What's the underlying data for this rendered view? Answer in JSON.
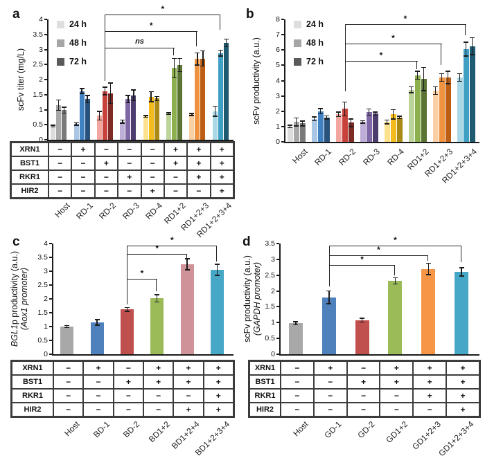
{
  "figure_background": "#ffffff",
  "chart_data": [
    {
      "id": "a",
      "panel_label": "a",
      "type": "bar",
      "grouped": true,
      "ylabel_lines": [
        [
          {
            "text": "scFv titer (mg/L)",
            "italic": false
          }
        ]
      ],
      "ylim": [
        0,
        4
      ],
      "ytick_values": [
        0,
        0.5,
        1,
        1.5,
        2,
        2.5,
        3,
        3.5,
        4
      ],
      "ytick_labels": [
        "0",
        "0.5",
        "1",
        "1.5",
        "2",
        "2.5",
        "3",
        "3.5",
        "4"
      ],
      "categories": [
        "Host",
        "RD-1",
        "RD-2",
        "RD-3",
        "RD-4",
        "RD1+2",
        "RD1+2+3",
        "RD1+2+3+4"
      ],
      "series": [
        {
          "name": "24 h",
          "values": [
            0.45,
            0.52,
            0.8,
            0.6,
            0.78,
            0.87,
            0.84,
            0.95
          ],
          "errors": [
            0.03,
            0.04,
            0.14,
            0.05,
            0.03,
            0.03,
            0.03,
            0.17
          ]
        },
        {
          "name": "48 h",
          "values": [
            1.15,
            1.62,
            1.62,
            1.35,
            1.43,
            2.38,
            2.68,
            2.88
          ],
          "errors": [
            0.17,
            0.08,
            0.13,
            0.12,
            0.17,
            0.32,
            0.2,
            0.1
          ]
        },
        {
          "name": "72 h",
          "values": [
            0.98,
            1.35,
            1.55,
            1.48,
            1.37,
            2.48,
            2.7,
            3.22
          ],
          "errors": [
            0.1,
            0.12,
            0.34,
            0.18,
            0.07,
            0.22,
            0.25,
            0.13
          ]
        }
      ],
      "group_colors": [
        [
          "#dcdcdc",
          "#a8a8a8",
          "#7a7a7a"
        ],
        [
          "#a9c7e4",
          "#4081c1",
          "#28517c"
        ],
        [
          "#f2a69f",
          "#c8423c",
          "#7d2a24"
        ],
        [
          "#bcaed6",
          "#8068a6",
          "#4c3d6e"
        ],
        [
          "#fce28e",
          "#f3bb1c",
          "#aa8a14"
        ],
        [
          "#bcd399",
          "#8cb04e",
          "#5c7433"
        ],
        [
          "#fbcfa4",
          "#ef9341",
          "#bc5f14"
        ],
        [
          "#a9d8e6",
          "#3fa0c4",
          "#1e5a70"
        ]
      ],
      "legend": {
        "entries": [
          "24 h",
          "48 h",
          "72 h"
        ],
        "colors": [
          "#dedede",
          "#a6a6a6",
          "#5a5a5a"
        ],
        "position": "top-left"
      },
      "significance": [
        {
          "from": 2,
          "to": 5,
          "label": "ns",
          "italic": true,
          "y": 3.05,
          "from_end": 1.95,
          "to_end": 2.8
        },
        {
          "from": 2,
          "to": 6,
          "label": "*",
          "italic": false,
          "y": 3.6,
          "from_end": 1.95,
          "to_end": 3.1
        },
        {
          "from": 2,
          "to": 7,
          "label": "*",
          "italic": false,
          "y": 4.15,
          "from_end": 1.95,
          "to_end": 3.65
        }
      ],
      "table": {
        "row_headers": [
          "XRN1",
          "BST1",
          "RKR1",
          "HIR2"
        ],
        "rows": [
          [
            "−",
            "+",
            "−",
            "−",
            "−",
            "+",
            "+",
            "+"
          ],
          [
            "−",
            "−",
            "+",
            "−",
            "−",
            "+",
            "+",
            "+"
          ],
          [
            "−",
            "−",
            "−",
            "+",
            "−",
            "−",
            "+",
            "+"
          ],
          [
            "−",
            "−",
            "−",
            "−",
            "+",
            "−",
            "−",
            "+"
          ]
        ]
      }
    },
    {
      "id": "b",
      "panel_label": "b",
      "type": "bar",
      "grouped": true,
      "ylabel_lines": [
        [
          {
            "text": "scFv productivity (a.u.)",
            "italic": false
          }
        ]
      ],
      "ylim": [
        0,
        8
      ],
      "ytick_values": [
        0,
        1,
        2,
        3,
        4,
        5,
        6,
        7,
        8
      ],
      "ytick_labels": [
        "0",
        "1",
        "2",
        "3",
        "4",
        "5",
        "6",
        "7",
        "8"
      ],
      "categories": [
        "Host",
        "RD-1",
        "RD-2",
        "RD-3",
        "RD-4",
        "RD1+2",
        "RD1+2+3",
        "RD1+2+3+4"
      ],
      "series": [
        {
          "name": "24 h",
          "values": [
            1.0,
            1.5,
            1.8,
            1.3,
            1.3,
            3.4,
            3.35,
            4.2
          ],
          "errors": [
            0.08,
            0.12,
            0.15,
            0.07,
            0.12,
            0.2,
            0.25,
            0.25
          ]
        },
        {
          "name": "48 h",
          "values": [
            1.3,
            2.0,
            2.15,
            1.95,
            1.8,
            4.35,
            4.2,
            6.05
          ],
          "errors": [
            0.25,
            0.18,
            0.45,
            0.2,
            0.3,
            0.25,
            0.25,
            0.45
          ]
        },
        {
          "name": "72 h",
          "values": [
            1.2,
            1.6,
            1.25,
            1.85,
            1.6,
            4.1,
            4.2,
            6.25
          ],
          "errors": [
            0.15,
            0.1,
            0.25,
            0.1,
            0.08,
            0.75,
            0.4,
            0.55
          ]
        }
      ],
      "group_colors": [
        [
          "#dcdcdc",
          "#a8a8a8",
          "#7a7a7a"
        ],
        [
          "#a9c7e4",
          "#4081c1",
          "#28517c"
        ],
        [
          "#f2a69f",
          "#c8423c",
          "#7d2a24"
        ],
        [
          "#bcaed6",
          "#8068a6",
          "#4c3d6e"
        ],
        [
          "#fce28e",
          "#f3bb1c",
          "#aa8a14"
        ],
        [
          "#bcd399",
          "#8cb04e",
          "#5c7433"
        ],
        [
          "#fbcfa4",
          "#ef9341",
          "#bc5f14"
        ],
        [
          "#a9d8e6",
          "#3fa0c4",
          "#1e5a70"
        ]
      ],
      "legend": {
        "entries": [
          "24 h",
          "48 h",
          "72 h"
        ],
        "colors": [
          "#dedede",
          "#a6a6a6",
          "#5a5a5a"
        ],
        "position": "top-left"
      },
      "significance": [
        {
          "from": 2,
          "to": 5,
          "label": "*",
          "italic": false,
          "y": 5.3,
          "from_end": 3.3,
          "to_end": 4.75
        },
        {
          "from": 2,
          "to": 6,
          "label": "*",
          "italic": false,
          "y": 6.4,
          "from_end": 3.3,
          "to_end": 5.0
        },
        {
          "from": 2,
          "to": 7,
          "label": "*",
          "italic": false,
          "y": 7.7,
          "from_end": 3.3,
          "to_end": 6.95
        }
      ],
      "table": null
    },
    {
      "id": "c",
      "panel_label": "c",
      "type": "bar",
      "grouped": false,
      "ylabel_lines": [
        [
          {
            "text": "BGL1",
            "italic": true
          },
          {
            "text": "p productivity (a.u.)",
            "italic": false
          }
        ],
        [
          {
            "text": "(Aox1 promoter)",
            "italic": true
          }
        ]
      ],
      "ylim": [
        0,
        4
      ],
      "ytick_values": [
        0,
        0.5,
        1,
        1.5,
        2,
        2.5,
        3,
        3.5,
        4
      ],
      "ytick_labels": [
        "0",
        "0.5",
        "1",
        "1.5",
        "2",
        "2.5",
        "3",
        "3.5",
        "4"
      ],
      "categories": [
        "Host",
        "BD-1",
        "BD-2",
        "BD1+2",
        "BD1+2+4",
        "BD1+2+3+4"
      ],
      "series": [
        {
          "name": "",
          "values": [
            1.0,
            1.15,
            1.62,
            2.02,
            3.25,
            3.05
          ],
          "errors": [
            0.04,
            0.1,
            0.07,
            0.13,
            0.2,
            0.2
          ]
        }
      ],
      "bar_colors": [
        "#a8a8a8",
        "#4f81bd",
        "#c0504d",
        "#9bbb59",
        "#cf9298",
        "#46a7c6"
      ],
      "legend": null,
      "significance": [
        {
          "from": 2,
          "to": 3,
          "label": "*",
          "italic": false,
          "y": 2.72,
          "from_end": 1.8,
          "to_end": 2.28
        },
        {
          "from": 2,
          "to": 4,
          "label": "*",
          "italic": false,
          "y": 3.62,
          "from_end": 1.8,
          "to_end": 3.47
        },
        {
          "from": 2,
          "to": 5,
          "label": "*",
          "italic": false,
          "y": 3.93,
          "from_end": 1.8,
          "to_end": 3.35
        }
      ],
      "table": {
        "row_headers": [
          "XRN1",
          "BST1",
          "RKR1",
          "HIR2"
        ],
        "rows": [
          [
            "−",
            "+",
            "−",
            "+",
            "+",
            "+"
          ],
          [
            "−",
            "−",
            "+",
            "+",
            "+",
            "+"
          ],
          [
            "−",
            "−",
            "−",
            "−",
            "−",
            "+"
          ],
          [
            "−",
            "−",
            "−",
            "−",
            "+",
            "+"
          ]
        ]
      }
    },
    {
      "id": "d",
      "panel_label": "d",
      "type": "bar",
      "grouped": false,
      "ylabel_lines": [
        [
          {
            "text": "scFv  productivity (a.u.)",
            "italic": false
          }
        ],
        [
          {
            "text": "(GAPDH promoter)",
            "italic": true
          }
        ]
      ],
      "ylim": [
        0,
        3.5
      ],
      "ytick_values": [
        0,
        0.5,
        1,
        1.5,
        2,
        2.5,
        3,
        3.5
      ],
      "ytick_labels": [
        "0",
        "0.5",
        "1",
        "1.5",
        "2",
        "2.5",
        "3",
        "3.5"
      ],
      "categories": [
        "Host",
        "GD-1",
        "GD-2",
        "GD1+2",
        "GD1+2+3",
        "GD1+2+3+4"
      ],
      "series": [
        {
          "name": "",
          "values": [
            0.98,
            1.8,
            1.08,
            2.32,
            2.7,
            2.6
          ],
          "errors": [
            0.05,
            0.2,
            0.06,
            0.1,
            0.18,
            0.13
          ]
        }
      ],
      "bar_colors": [
        "#a8a8a8",
        "#4f81bd",
        "#c0504d",
        "#9bbb59",
        "#f79646",
        "#46a7c6"
      ],
      "legend": null,
      "significance": [
        {
          "from": 1,
          "to": 3,
          "label": "*",
          "italic": false,
          "y": 2.82,
          "from_end": 2.15,
          "to_end": 2.5
        },
        {
          "from": 1,
          "to": 4,
          "label": "*",
          "italic": false,
          "y": 3.12,
          "from_end": 2.15,
          "to_end": 2.95
        },
        {
          "from": 1,
          "to": 5,
          "label": "*",
          "italic": false,
          "y": 3.43,
          "from_end": 2.15,
          "to_end": 2.9
        }
      ],
      "table": {
        "row_headers": [
          "XRN1",
          "BST1",
          "RKR1",
          "HIR2"
        ],
        "rows": [
          [
            "−",
            "+",
            "−",
            "+",
            "+",
            "+"
          ],
          [
            "−",
            "−",
            "+",
            "+",
            "+",
            "+"
          ],
          [
            "−",
            "−",
            "−",
            "−",
            "+",
            "+"
          ],
          [
            "−",
            "−",
            "−",
            "−",
            "−",
            "+"
          ]
        ]
      }
    }
  ]
}
